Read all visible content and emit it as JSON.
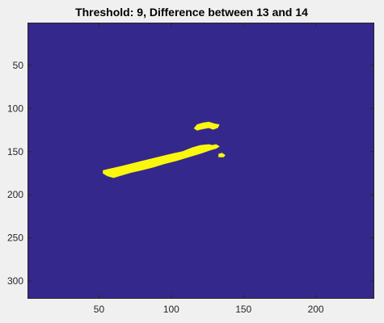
{
  "chart_data": {
    "type": "heatmap",
    "title": "Threshold: 9, Difference between 13 and 14",
    "xlabel": "",
    "ylabel": "",
    "xlim": [
      0.5,
      240.5
    ],
    "ylim": [
      0.5,
      320.5
    ],
    "y_reversed": true,
    "grid": false,
    "colormap": {
      "background": "#35288c",
      "foreground": "#f9f60f",
      "axes_bg": "#ffffff",
      "tick": "#262626"
    },
    "x_ticks": [
      50,
      100,
      150,
      200
    ],
    "x_tick_labels": [
      "50",
      "100",
      "150",
      "200"
    ],
    "y_ticks": [
      50,
      100,
      150,
      200,
      250,
      300
    ],
    "y_tick_labels": [
      "50",
      "100",
      "150",
      "200",
      "250",
      "300"
    ],
    "regions": [
      {
        "name": "main-streak",
        "polygon": [
          [
            53,
            172
          ],
          [
            58,
            170
          ],
          [
            66,
            167
          ],
          [
            78,
            162
          ],
          [
            90,
            157
          ],
          [
            100,
            153
          ],
          [
            108,
            150
          ],
          [
            114,
            146
          ],
          [
            120,
            143
          ],
          [
            126,
            142
          ],
          [
            131,
            144
          ],
          [
            131,
            146
          ],
          [
            127,
            148
          ],
          [
            120,
            152
          ],
          [
            112,
            156
          ],
          [
            104,
            160
          ],
          [
            95,
            164
          ],
          [
            87,
            168
          ],
          [
            80,
            171
          ],
          [
            72,
            174
          ],
          [
            66,
            177
          ],
          [
            60,
            180
          ],
          [
            56,
            178
          ],
          [
            53,
            175
          ]
        ]
      },
      {
        "name": "upper-blob",
        "polygon": [
          [
            116,
            123
          ],
          [
            118,
            119
          ],
          [
            122,
            117
          ],
          [
            126,
            116
          ],
          [
            130,
            118
          ],
          [
            133,
            119
          ],
          [
            132,
            122
          ],
          [
            129,
            124
          ],
          [
            126,
            122
          ],
          [
            123,
            123
          ],
          [
            120,
            124
          ],
          [
            118,
            125
          ]
        ]
      },
      {
        "name": "side-speck",
        "polygon": [
          [
            128,
            143
          ],
          [
            131,
            142
          ],
          [
            133,
            144
          ],
          [
            131,
            146
          ],
          [
            128,
            145
          ]
        ]
      },
      {
        "name": "small-dot",
        "polygon": [
          [
            133,
            153
          ],
          [
            135,
            152
          ],
          [
            137,
            154
          ],
          [
            136,
            156
          ],
          [
            133,
            156
          ]
        ]
      }
    ]
  }
}
